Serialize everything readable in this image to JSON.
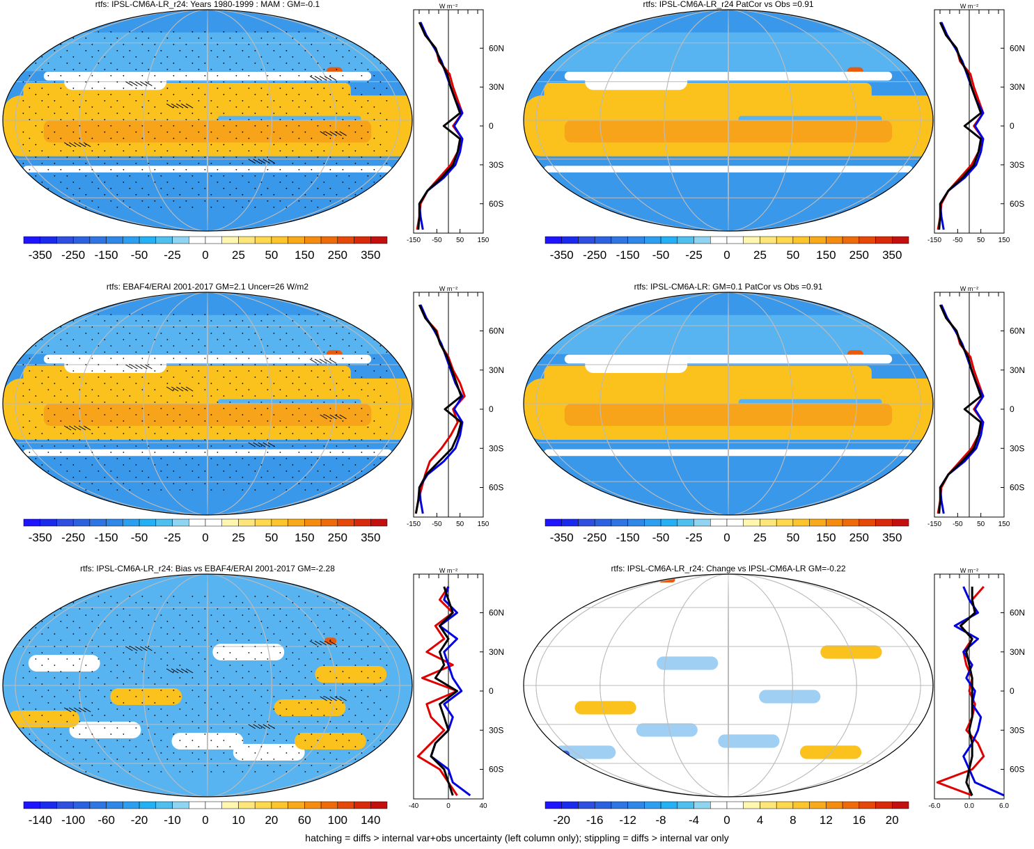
{
  "palettes": {
    "diverging22": [
      "#1f14ff",
      "#1a2bee",
      "#2f4fe0",
      "#2c62e0",
      "#2f76e4",
      "#2f87e8",
      "#2c9ff0",
      "#24b0f4",
      "#4ec0f0",
      "#8fd5f2",
      "#ffffff",
      "#ffffff",
      "#fff6b0",
      "#ffe67a",
      "#ffd84e",
      "#fdc52c",
      "#f8aa1a",
      "#f58c10",
      "#ef6a0a",
      "#e54808",
      "#d82a0a",
      "#c40f0f"
    ],
    "map_colors": {
      "ocean_cool": "#3a98ea",
      "ocean_mid": "#58b4f0",
      "warm": "#fbc21e",
      "warm_deep": "#f7a41a",
      "hot": "#e85a0e",
      "white": "#ffffff",
      "neutral_pale": "#f3f6fa",
      "grid": "#bbbbbb",
      "coast": "#000000"
    },
    "profile_colors": {
      "model": "#e00000",
      "obs": "#0000e0",
      "third": "#000000"
    }
  },
  "footnote": "hatching = diffs > internal var+obs uncertainty (left column only); stippling = diffs > internal var only",
  "profile_unit": "W m⁻²",
  "lat_labels": [
    "60N",
    "30N",
    "0",
    "30S",
    "60S"
  ],
  "panels": [
    {
      "title": "rtfs: IPSL-CM6A-LR_r24: Years 1980-1999 : MAM : GM=-0.1",
      "style": "mean",
      "stipple": true,
      "hatch": true,
      "colorbar": {
        "labels": [
          "-350",
          "-250",
          "-150",
          "-50",
          "-25",
          "0",
          "25",
          "50",
          "150",
          "250",
          "350"
        ]
      },
      "profile": {
        "ticks": [
          "-150",
          "-50",
          "50",
          "150"
        ],
        "xlim": [
          -150,
          150
        ]
      }
    },
    {
      "title": "rtfs: IPSL-CM6A-LR_r24 PatCor vs Obs =0.91",
      "style": "mean",
      "stipple": false,
      "hatch": false,
      "colorbar": {
        "labels": [
          "-350",
          "-250",
          "-150",
          "-50",
          "-25",
          "0",
          "25",
          "50",
          "150",
          "250",
          "350"
        ]
      },
      "profile": {
        "ticks": [
          "-150",
          "-50",
          "50",
          "150"
        ],
        "xlim": [
          -150,
          150
        ]
      }
    },
    {
      "title": "rtfs: EBAF4/ERAI 2001-2017 GM=2.1 Uncer=26 W/m2",
      "style": "mean",
      "stipple": true,
      "hatch": true,
      "colorbar": {
        "labels": [
          "-350",
          "-250",
          "-150",
          "-50",
          "-25",
          "0",
          "25",
          "50",
          "150",
          "250",
          "350"
        ]
      },
      "profile": {
        "ticks": [
          "-150",
          "-50",
          "50",
          "150"
        ],
        "xlim": [
          -150,
          150
        ]
      }
    },
    {
      "title": "rtfs: IPSL-CM6A-LR: GM=0.1 PatCor vs Obs =0.91",
      "style": "mean",
      "stipple": false,
      "hatch": false,
      "colorbar": {
        "labels": [
          "-350",
          "-250",
          "-150",
          "-50",
          "-25",
          "0",
          "25",
          "50",
          "150",
          "250",
          "350"
        ]
      },
      "profile": {
        "ticks": [
          "-150",
          "-50",
          "50",
          "150"
        ],
        "xlim": [
          -150,
          150
        ]
      }
    },
    {
      "title": "rtfs: IPSL-CM6A-LR_r24: Bias vs EBAF4/ERAI 2001-2017 GM=-2.28",
      "style": "bias",
      "stipple": true,
      "hatch": true,
      "colorbar": {
        "labels": [
          "-140",
          "-100",
          "-60",
          "-20",
          "-10",
          "0",
          "10",
          "20",
          "60",
          "100",
          "140"
        ]
      },
      "profile": {
        "ticks": [
          "-40",
          "0",
          "40"
        ],
        "xlim": [
          -40,
          40
        ]
      }
    },
    {
      "title": "rtfs: IPSL-CM6A-LR_r24: Change vs IPSL-CM6A-LR GM=-0.22",
      "style": "change",
      "stipple": false,
      "hatch": false,
      "colorbar": {
        "labels": [
          "-20",
          "-16",
          "-12",
          "-8",
          "-4",
          "0",
          "4",
          "8",
          "12",
          "16",
          "20"
        ]
      },
      "profile": {
        "ticks": [
          "-6.0",
          "0.0",
          "6.0"
        ],
        "xlim": [
          -6,
          6
        ]
      }
    }
  ],
  "chart_data": {
    "type": "heatmap",
    "description_of_axes": "zonal-mean profiles: x = rtfs (W m-2), y = latitude (deg)",
    "lat": [
      80,
      70,
      60,
      50,
      40,
      30,
      20,
      10,
      0,
      -10,
      -20,
      -30,
      -40,
      -50,
      -60,
      -70,
      -80
    ],
    "profiles": [
      {
        "panel": 0,
        "series": [
          {
            "name": "model",
            "values": [
              -120,
              -100,
              -55,
              -40,
              5,
              20,
              40,
              60,
              20,
              60,
              40,
              10,
              -40,
              -90,
              -120,
              -125,
              -135
            ]
          },
          {
            "name": "obs",
            "values": [
              -120,
              -95,
              -60,
              -30,
              -10,
              10,
              30,
              60,
              25,
              60,
              50,
              30,
              -20,
              -90,
              -125,
              -120,
              -110
            ]
          },
          {
            "name": "third",
            "values": [
              -125,
              -100,
              -55,
              -35,
              -5,
              10,
              30,
              50,
              -20,
              50,
              40,
              20,
              -30,
              -90,
              -125,
              -125,
              -130
            ]
          }
        ]
      },
      {
        "panel": 1,
        "series": [
          {
            "name": "model",
            "values": [
              -120,
              -100,
              -55,
              -40,
              5,
              20,
              40,
              60,
              20,
              60,
              40,
              10,
              -40,
              -90,
              -120,
              -125,
              -135
            ]
          },
          {
            "name": "obs",
            "values": [
              -120,
              -95,
              -60,
              -30,
              -10,
              10,
              30,
              60,
              25,
              60,
              50,
              30,
              -20,
              -90,
              -125,
              -120,
              -110
            ]
          },
          {
            "name": "third",
            "values": [
              -125,
              -100,
              -55,
              -35,
              -5,
              10,
              30,
              50,
              -20,
              50,
              40,
              20,
              -30,
              -90,
              -125,
              -125,
              -130
            ]
          }
        ]
      },
      {
        "panel": 2,
        "series": [
          {
            "name": "model",
            "values": [
              -120,
              -100,
              -50,
              -35,
              0,
              20,
              50,
              70,
              20,
              40,
              10,
              -30,
              -80,
              -100,
              -115,
              -130,
              -140
            ]
          },
          {
            "name": "obs",
            "values": [
              -120,
              -95,
              -60,
              -30,
              -10,
              10,
              30,
              60,
              25,
              60,
              50,
              30,
              -20,
              -90,
              -125,
              -120,
              -110
            ]
          },
          {
            "name": "third",
            "values": [
              -125,
              -100,
              -55,
              -35,
              -5,
              15,
              35,
              55,
              -15,
              55,
              40,
              15,
              -40,
              -95,
              -125,
              -130,
              -140
            ]
          }
        ]
      },
      {
        "panel": 3,
        "series": [
          {
            "name": "model",
            "values": [
              -120,
              -100,
              -55,
              -40,
              5,
              20,
              40,
              60,
              20,
              60,
              40,
              10,
              -40,
              -90,
              -120,
              -125,
              -135
            ]
          },
          {
            "name": "obs",
            "values": [
              -120,
              -95,
              -60,
              -30,
              -10,
              10,
              30,
              60,
              25,
              60,
              50,
              30,
              -20,
              -90,
              -125,
              -120,
              -110
            ]
          },
          {
            "name": "third",
            "values": [
              -125,
              -100,
              -55,
              -35,
              -5,
              10,
              30,
              50,
              -20,
              50,
              40,
              20,
              -30,
              -90,
              -125,
              -125,
              -130
            ]
          }
        ]
      },
      {
        "panel": 4,
        "series": [
          {
            "name": "model",
            "values": [
              0,
              -10,
              5,
              -15,
              -5,
              -25,
              5,
              -30,
              10,
              -25,
              -20,
              -5,
              -20,
              -35,
              -10,
              0,
              10
            ]
          },
          {
            "name": "obs",
            "values": [
              0,
              -5,
              10,
              -10,
              10,
              -5,
              0,
              5,
              15,
              -5,
              5,
              0,
              -15,
              -20,
              0,
              5,
              25
            ]
          },
          {
            "name": "third",
            "values": [
              -5,
              0,
              5,
              -10,
              0,
              -10,
              -5,
              -15,
              10,
              -10,
              -5,
              0,
              -15,
              -20,
              -5,
              0,
              5
            ]
          }
        ]
      },
      {
        "panel": 5,
        "series": [
          {
            "name": "model",
            "values": [
              2.5,
              0.5,
              1.0,
              -1.5,
              0.5,
              -1.0,
              -0.5,
              0.5,
              0.0,
              1.0,
              0.5,
              -0.5,
              1.5,
              2.5,
              0.5,
              -5.5,
              0.5
            ]
          },
          {
            "name": "obs",
            "values": [
              -1.0,
              0.0,
              1.5,
              -2.5,
              1.5,
              -1.0,
              0.5,
              -0.5,
              1.0,
              0.5,
              2.0,
              1.5,
              0.5,
              -1.0,
              0.0,
              1.0,
              6.5
            ]
          },
          {
            "name": "third",
            "values": [
              0.5,
              0.5,
              1.0,
              -1.5,
              0.5,
              -0.5,
              0.0,
              0.5,
              0.5,
              0.5,
              0.5,
              0.0,
              0.5,
              0.5,
              0.0,
              -0.5,
              0.5
            ]
          }
        ]
      }
    ]
  }
}
